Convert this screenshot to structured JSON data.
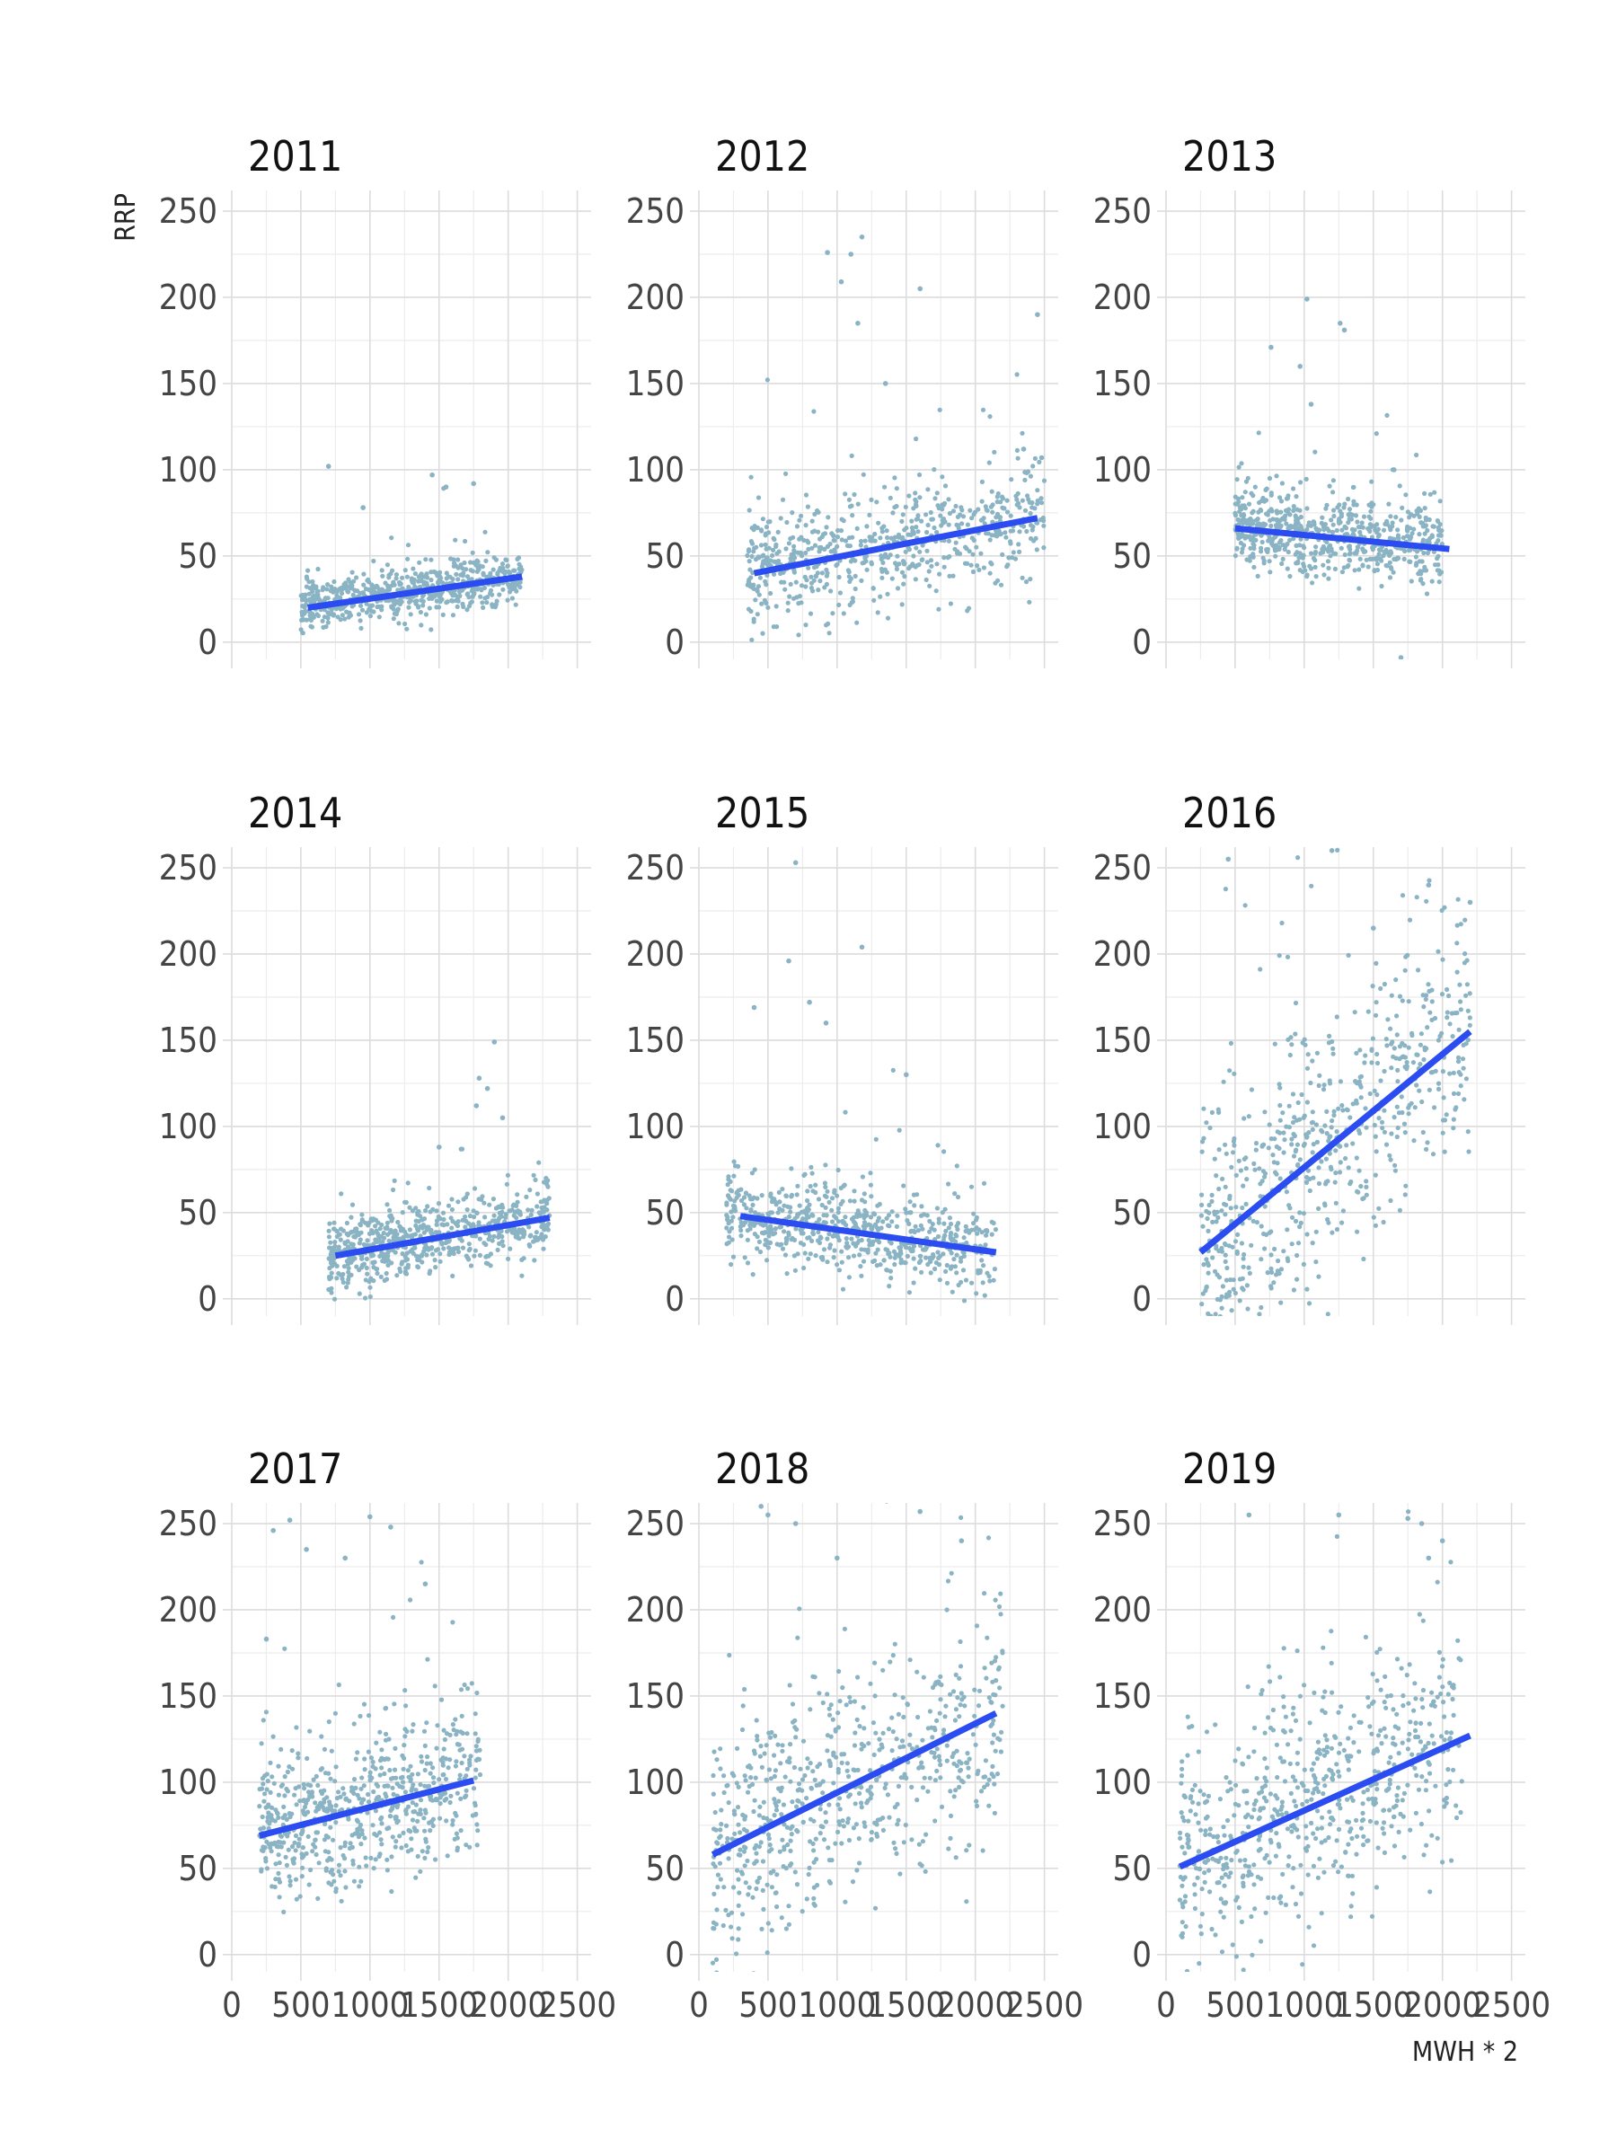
{
  "chart_data": {
    "type": "scatter",
    "layout": "facet-grid 3x3",
    "xlabel": "MWH * 2",
    "ylabel": "RRP",
    "xlim": [
      0,
      2600
    ],
    "ylim": [
      -10,
      262
    ],
    "x_ticks": [
      0,
      500,
      1000,
      1500,
      2000,
      2500
    ],
    "y_ticks": [
      0,
      50,
      100,
      150,
      200,
      250
    ],
    "grid": true,
    "point_color": "#8ab3c4",
    "line_color": "#2a4cf0",
    "panels": [
      {
        "title": "2011",
        "x_range": [
          500,
          2100
        ],
        "y_center": [
          20,
          38
        ],
        "y_spread": 7,
        "fit": [
          [
            550,
            20
          ],
          [
            2100,
            38
          ]
        ],
        "outliers": [
          [
            700,
            102
          ],
          [
            1450,
            97
          ],
          [
            1750,
            92
          ],
          [
            1550,
            90
          ],
          [
            950,
            78
          ]
        ]
      },
      {
        "title": "2012",
        "x_range": [
          350,
          2500
        ],
        "y_center": [
          40,
          72
        ],
        "y_spread": 17,
        "fit": [
          [
            400,
            40
          ],
          [
            2450,
            72
          ]
        ],
        "outliers": [
          [
            1180,
            235
          ],
          [
            1100,
            225
          ],
          [
            930,
            226
          ],
          [
            1030,
            209
          ],
          [
            1600,
            205
          ],
          [
            2450,
            190
          ],
          [
            1150,
            185
          ],
          [
            1350,
            150
          ],
          [
            2350,
            112
          ],
          [
            2480,
            107
          ]
        ]
      },
      {
        "title": "2013",
        "x_range": [
          500,
          2000
        ],
        "y_center": [
          66,
          55
        ],
        "y_spread": 12,
        "fit": [
          [
            500,
            66
          ],
          [
            2050,
            54
          ]
        ],
        "outliers": [
          [
            1020,
            199
          ],
          [
            1260,
            185
          ],
          [
            1290,
            181
          ],
          [
            760,
            171
          ],
          [
            970,
            160
          ],
          [
            1050,
            138
          ],
          [
            1650,
            100
          ],
          [
            1700,
            -9
          ]
        ]
      },
      {
        "title": "2014",
        "x_range": [
          700,
          2300
        ],
        "y_center": [
          25,
          47
        ],
        "y_spread": 10,
        "fit": [
          [
            750,
            25
          ],
          [
            2300,
            47
          ]
        ],
        "outliers": [
          [
            1900,
            149
          ],
          [
            1790,
            128
          ],
          [
            1850,
            122
          ],
          [
            1770,
            112
          ],
          [
            1960,
            105
          ],
          [
            1500,
            88
          ]
        ]
      },
      {
        "title": "2015",
        "x_range": [
          200,
          2150
        ],
        "y_center": [
          48,
          27
        ],
        "y_spread": 12,
        "fit": [
          [
            300,
            48
          ],
          [
            2150,
            27
          ]
        ],
        "outliers": [
          [
            700,
            253
          ],
          [
            1180,
            204
          ],
          [
            650,
            196
          ],
          [
            400,
            169
          ],
          [
            800,
            172
          ],
          [
            920,
            160
          ],
          [
            1500,
            130
          ]
        ]
      },
      {
        "title": "2016",
        "x_range": [
          250,
          2200
        ],
        "y_center": [
          27,
          155
        ],
        "y_spread": 38,
        "fit": [
          [
            250,
            27
          ],
          [
            2200,
            155
          ]
        ],
        "outliers": [
          [
            450,
            255
          ],
          [
            1200,
            260
          ],
          [
            1900,
            240
          ],
          [
            2200,
            230
          ],
          [
            1500,
            215
          ]
        ]
      },
      {
        "title": "2017",
        "x_range": [
          200,
          1800
        ],
        "y_center": [
          70,
          101
        ],
        "y_spread": 22,
        "fit": [
          [
            200,
            69
          ],
          [
            1750,
            101
          ]
        ],
        "outliers": [
          [
            300,
            246
          ],
          [
            420,
            252
          ],
          [
            1000,
            254
          ],
          [
            1150,
            248
          ],
          [
            540,
            235
          ],
          [
            820,
            230
          ],
          [
            1400,
            215
          ],
          [
            250,
            183
          ]
        ]
      },
      {
        "title": "2018",
        "x_range": [
          100,
          2200
        ],
        "y_center": [
          58,
          140
        ],
        "y_spread": 32,
        "fit": [
          [
            100,
            58
          ],
          [
            2150,
            140
          ]
        ],
        "outliers": [
          [
            450,
            260
          ],
          [
            500,
            255
          ],
          [
            700,
            250
          ],
          [
            1600,
            257
          ],
          [
            1900,
            240
          ],
          [
            1000,
            230
          ]
        ]
      },
      {
        "title": "2019",
        "x_range": [
          100,
          2150
        ],
        "y_center": [
          50,
          127
        ],
        "y_spread": 32,
        "fit": [
          [
            100,
            51
          ],
          [
            2200,
            127
          ]
        ],
        "outliers": [
          [
            600,
            255
          ],
          [
            1250,
            255
          ],
          [
            1750,
            253
          ],
          [
            1850,
            250
          ],
          [
            2000,
            240
          ],
          [
            1900,
            230
          ]
        ]
      }
    ]
  }
}
